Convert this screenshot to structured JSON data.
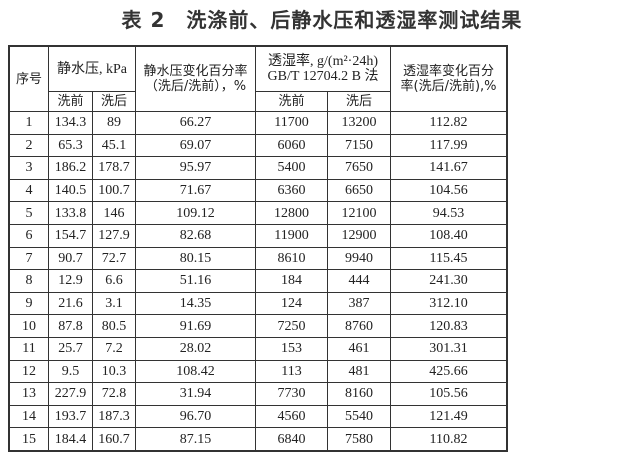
{
  "title": "表 2　洗涤前、后静水压和透湿率测试结果",
  "headers": {
    "index": "序号",
    "hydro": "静水压, kPa",
    "hydro_change_1": "静水压变化百分率",
    "hydro_change_2": "（洗后/洗前），%",
    "mvtr_1": "透湿率, g/(m²·24h)",
    "mvtr_2": "GB/T 12704.2 B 法",
    "mvtr_change_1": "透湿率变化百分",
    "mvtr_change_2": "率(洗后/洗前),%",
    "before": "洗前",
    "after": "洗后"
  },
  "rows": [
    [
      "1",
      "134.3",
      "89",
      "66.27",
      "11700",
      "13200",
      "112.82"
    ],
    [
      "2",
      "65.3",
      "45.1",
      "69.07",
      "6060",
      "7150",
      "117.99"
    ],
    [
      "3",
      "186.2",
      "178.7",
      "95.97",
      "5400",
      "7650",
      "141.67"
    ],
    [
      "4",
      "140.5",
      "100.7",
      "71.67",
      "6360",
      "6650",
      "104.56"
    ],
    [
      "5",
      "133.8",
      "146",
      "109.12",
      "12800",
      "12100",
      "94.53"
    ],
    [
      "6",
      "154.7",
      "127.9",
      "82.68",
      "11900",
      "12900",
      "108.40"
    ],
    [
      "7",
      "90.7",
      "72.7",
      "80.15",
      "8610",
      "9940",
      "115.45"
    ],
    [
      "8",
      "12.9",
      "6.6",
      "51.16",
      "184",
      "444",
      "241.30"
    ],
    [
      "9",
      "21.6",
      "3.1",
      "14.35",
      "124",
      "387",
      "312.10"
    ],
    [
      "10",
      "87.8",
      "80.5",
      "91.69",
      "7250",
      "8760",
      "120.83"
    ],
    [
      "11",
      "25.7",
      "7.2",
      "28.02",
      "153",
      "461",
      "301.31"
    ],
    [
      "12",
      "9.5",
      "10.3",
      "108.42",
      "113",
      "481",
      "425.66"
    ],
    [
      "13",
      "227.9",
      "72.8",
      "31.94",
      "7730",
      "8160",
      "105.56"
    ],
    [
      "14",
      "193.7",
      "187.3",
      "96.70",
      "4560",
      "5540",
      "121.49"
    ],
    [
      "15",
      "184.4",
      "160.7",
      "87.15",
      "6840",
      "7580",
      "110.82"
    ]
  ]
}
